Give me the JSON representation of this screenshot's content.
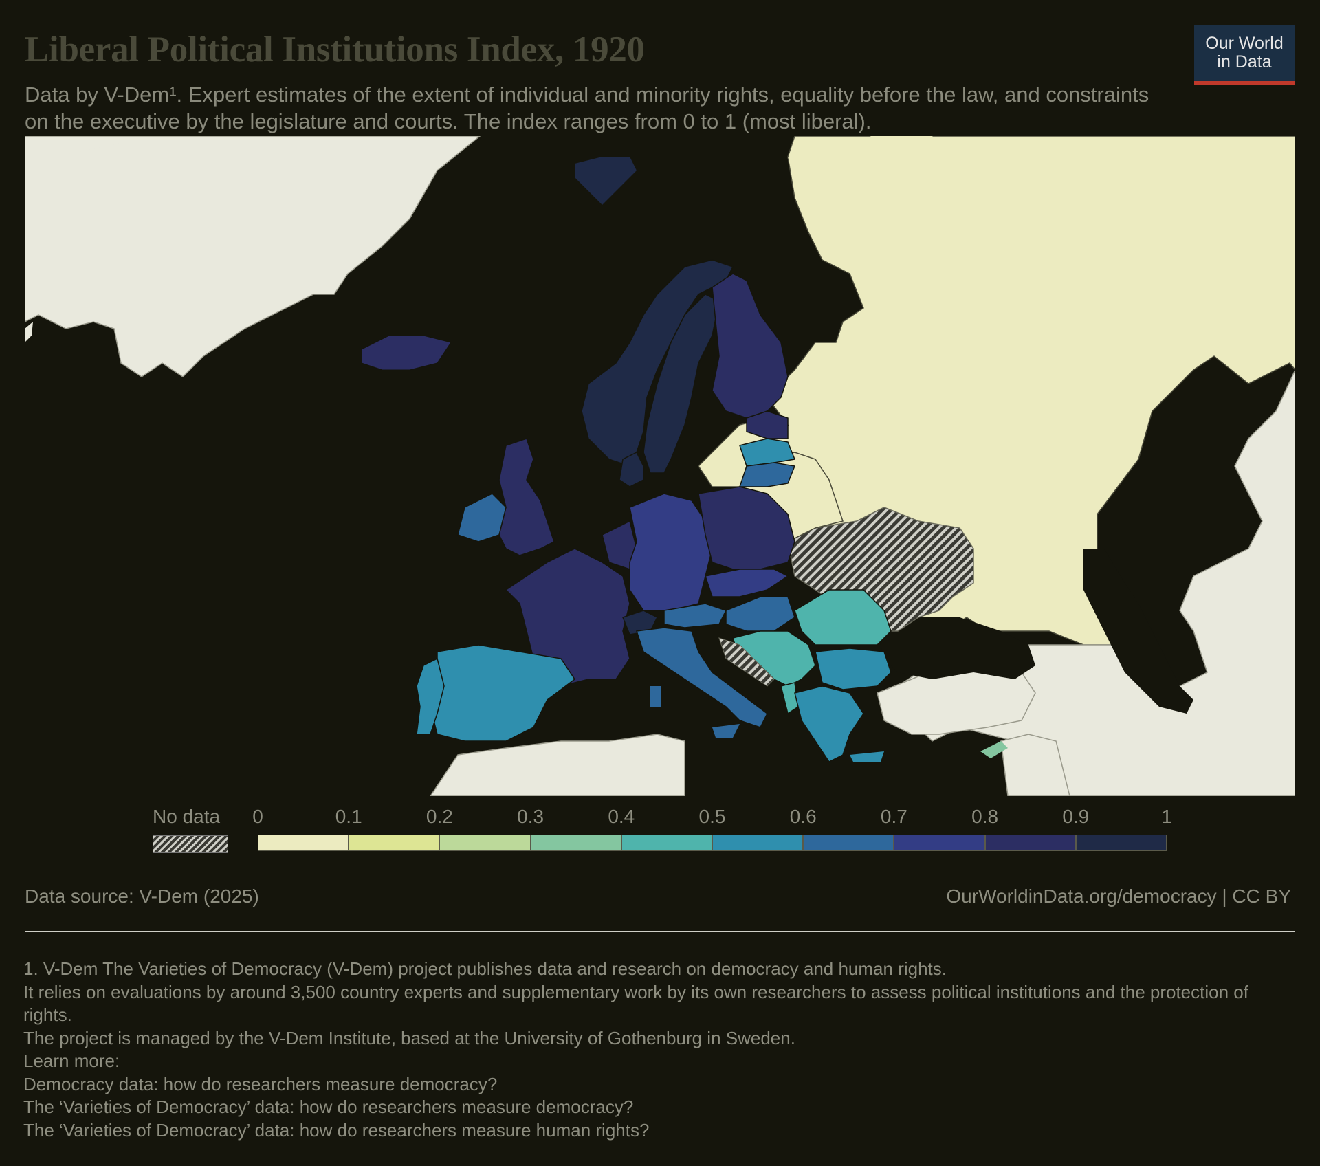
{
  "header": {
    "title": "Liberal Political Institutions Index, 1920",
    "subtitle": "Data by V-Dem¹. Expert estimates of the extent of individual and minority rights, equality before the law, and constraints on the executive by the legislature and courts. The index ranges from 0 to 1 (most liberal).",
    "logo_line1": "Our World",
    "logo_line2": "in Data"
  },
  "legend": {
    "no_data_label": "No data",
    "ticks": [
      "0",
      "0.1",
      "0.2",
      "0.3",
      "0.4",
      "0.5",
      "0.6",
      "0.7",
      "0.8",
      "0.9",
      "1"
    ],
    "colors": [
      "#ecebc0",
      "#dde594",
      "#bcd99a",
      "#84c6a0",
      "#4fb4ac",
      "#2f8fae",
      "#2e689c",
      "#333d85",
      "#2c2e63",
      "#1f2a47"
    ],
    "no_data_color": "hatched"
  },
  "map": {
    "regions": [
      {
        "name": "Russia / Soviet territory",
        "value": 0.03
      },
      {
        "name": "Ukraine area",
        "value": null
      },
      {
        "name": "Norway",
        "value": 0.92
      },
      {
        "name": "Sweden",
        "value": 0.92
      },
      {
        "name": "Finland",
        "value": 0.82
      },
      {
        "name": "Estonia",
        "value": 0.75
      },
      {
        "name": "Latvia",
        "value": 0.5
      },
      {
        "name": "Lithuania",
        "value": 0.62
      },
      {
        "name": "Denmark",
        "value": 0.9
      },
      {
        "name": "United Kingdom",
        "value": 0.82
      },
      {
        "name": "Ireland",
        "value": 0.62
      },
      {
        "name": "Iceland",
        "value": 0.8
      },
      {
        "name": "France",
        "value": 0.82
      },
      {
        "name": "Belgium / Netherlands",
        "value": 0.8
      },
      {
        "name": "Germany",
        "value": 0.75
      },
      {
        "name": "Poland",
        "value": 0.82
      },
      {
        "name": "Czechoslovakia",
        "value": 0.75
      },
      {
        "name": "Austria",
        "value": 0.62
      },
      {
        "name": "Hungary",
        "value": 0.62
      },
      {
        "name": "Switzerland",
        "value": 0.92
      },
      {
        "name": "Italy",
        "value": 0.62
      },
      {
        "name": "Spain",
        "value": 0.52
      },
      {
        "name": "Portugal",
        "value": 0.52
      },
      {
        "name": "Romania",
        "value": 0.45
      },
      {
        "name": "Yugoslavia",
        "value": 0.45
      },
      {
        "name": "Bulgaria",
        "value": 0.52
      },
      {
        "name": "Albania",
        "value": 0.42
      },
      {
        "name": "Greece",
        "value": 0.52
      },
      {
        "name": "Cyprus",
        "value": 0.35
      },
      {
        "name": "Svalbard",
        "value": 0.92
      },
      {
        "name": "Greenland / other land",
        "value": "other"
      }
    ]
  },
  "footer": {
    "source": "Data source: V-Dem (2025)",
    "url": "OurWorldinData.org/democracy | CC BY",
    "notes": [
      "1. V-Dem The Varieties of Democracy (V-Dem) project publishes data and research on democracy and human rights.",
      "It relies on evaluations by around 3,500 country experts and supplementary work by its own researchers to assess political institutions and the protection of rights.",
      "The project is managed by the V-Dem Institute, based at the University of Gothenburg in Sweden.",
      "Learn more:",
      "Democracy data: how do researchers measure democracy?",
      "The ‘Varieties of Democracy’ data: how do researchers measure democracy?",
      "The ‘Varieties of Democracy’ data: how do researchers measure human rights?"
    ]
  }
}
